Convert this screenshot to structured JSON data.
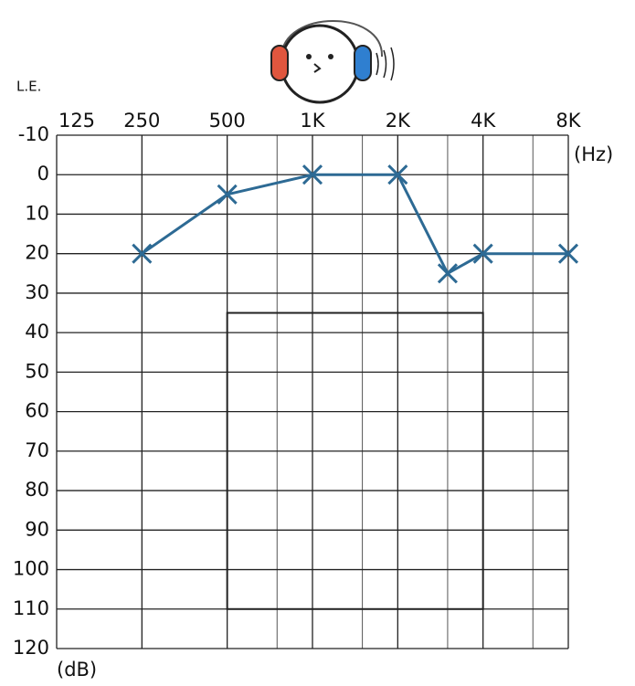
{
  "chart_data": {
    "type": "line",
    "ear_label": "L.E.",
    "x_unit": "(Hz)",
    "y_unit": "(dB)",
    "xscale": "log",
    "xlim": [
      125,
      8000
    ],
    "xticks": [
      125,
      250,
      500,
      {
        "value": 1000,
        "label": "1K"
      },
      {
        "value": 2000,
        "label": "2K"
      },
      {
        "value": 4000,
        "label": "4K"
      },
      {
        "value": 8000,
        "label": "8K"
      }
    ],
    "xticks_minor": [
      750,
      1500,
      3000,
      6000
    ],
    "ylim": [
      -10,
      120
    ],
    "yticks": [
      -10,
      0,
      10,
      20,
      30,
      40,
      50,
      60,
      70,
      80,
      90,
      100,
      110,
      120
    ],
    "y_inverted": true,
    "grid": true,
    "region": {
      "x": [
        500,
        4000
      ],
      "y": [
        35,
        110
      ]
    },
    "series": [
      {
        "name": "L.E.",
        "color": "#2d6a94",
        "marker": "x",
        "x": [
          250,
          500,
          1000,
          2000,
          3000,
          4000,
          8000
        ],
        "values": [
          20,
          5,
          0,
          0,
          25,
          20,
          20
        ]
      }
    ]
  }
}
